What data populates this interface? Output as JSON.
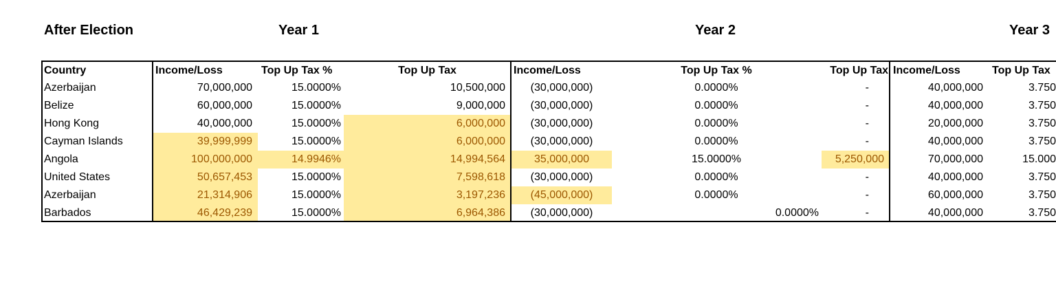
{
  "header": {
    "title": "After Election",
    "years": [
      "Year 1",
      "Year 2",
      "Year 3"
    ]
  },
  "table": {
    "columns": [
      "Country",
      "Income/Loss",
      "Top Up Tax %",
      "Top Up Tax",
      "Income/Loss",
      "Top Up Tax %",
      "Top Up Tax",
      "Income/Loss",
      "Top Up Tax"
    ],
    "rows": [
      {
        "cells": [
          "Azerbaijan",
          "70,000,000",
          "15.0000%",
          "10,500,000",
          "(30,000,000)",
          "0.0000%",
          "-",
          "40,000,000",
          "3.750"
        ],
        "highlight": []
      },
      {
        "cells": [
          "Belize",
          "60,000,000",
          "15.0000%",
          "9,000,000",
          "(30,000,000)",
          "0.0000%",
          "-",
          "40,000,000",
          "3.750"
        ],
        "highlight": []
      },
      {
        "cells": [
          "Hong Kong",
          "40,000,000",
          "15.0000%",
          "6,000,000",
          "(30,000,000)",
          "0.0000%",
          "-",
          "20,000,000",
          "3.750"
        ],
        "highlight": [
          3
        ]
      },
      {
        "cells": [
          "Cayman Islands",
          "39,999,999",
          "15.0000%",
          "6,000,000",
          "(30,000,000)",
          "0.0000%",
          "-",
          "40,000,000",
          "3.750"
        ],
        "highlight": [
          1,
          3
        ]
      },
      {
        "cells": [
          "Angola",
          "100,000,000",
          "14.9946%",
          "14,994,564",
          "35,000,000",
          "15.0000%",
          "5,250,000",
          "70,000,000",
          "15.000"
        ],
        "highlight": [
          1,
          2,
          3,
          4,
          6
        ]
      },
      {
        "cells": [
          "United States",
          "50,657,453",
          "15.0000%",
          "7,598,618",
          "(30,000,000)",
          "0.0000%",
          "-",
          "40,000,000",
          "3.750"
        ],
        "highlight": [
          1,
          3
        ]
      },
      {
        "cells": [
          "Azerbaijan",
          "21,314,906",
          "15.0000%",
          "3,197,236",
          "(45,000,000)",
          "0.0000%",
          "-",
          "60,000,000",
          "3.750"
        ],
        "highlight": [
          1,
          3,
          4
        ]
      },
      {
        "cells": [
          "Barbados",
          "46,429,239",
          "15.0000%",
          "6,964,386",
          "(30,000,000)",
          "0.0000%",
          "-",
          "40,000,000",
          "3.750"
        ],
        "highlight": [
          1,
          3
        ]
      }
    ],
    "highlight_fill": "#ffeb9c",
    "highlight_text": "#9c5700"
  }
}
